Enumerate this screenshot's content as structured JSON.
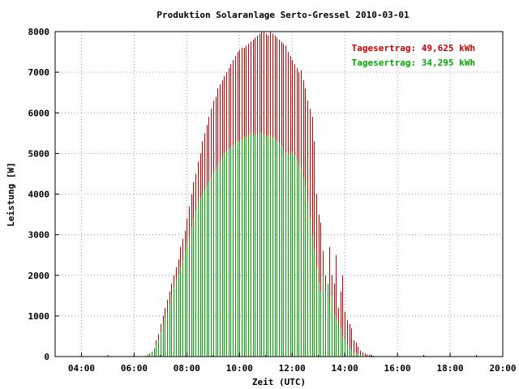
{
  "chart_data": {
    "type": "bar",
    "title": "Produktion Solaranlage Serto-Gressel 2010-03-01",
    "xlabel": "Zeit (UTC)",
    "ylabel": "Leistung [W]",
    "xlim_hours": [
      3.0,
      20.0
    ],
    "ylim": [
      0,
      8000
    ],
    "x_ticks": [
      "04:00",
      "06:00",
      "08:00",
      "10:00",
      "12:00",
      "14:00",
      "16:00",
      "18:00",
      "20:00"
    ],
    "y_ticks": [
      "0",
      "1000",
      "2000",
      "3000",
      "4000",
      "5000",
      "6000",
      "7000",
      "8000"
    ],
    "grid": true,
    "interval_minutes": 5,
    "legend_position": "top-right",
    "series": [
      {
        "name": "Tagesertrag: 49,625 kWh",
        "color": "#cc0000",
        "start_time": "06:25",
        "values": [
          20,
          50,
          80,
          120,
          200,
          400,
          550,
          800,
          1000,
          1200,
          1400,
          1600,
          1800,
          2000,
          2200,
          2400,
          2700,
          2900,
          3100,
          3400,
          3700,
          4000,
          4300,
          4500,
          4800,
          5000,
          5300,
          5500,
          5700,
          5900,
          6100,
          6300,
          6400,
          6600,
          6700,
          6800,
          6900,
          7000,
          7100,
          7200,
          7300,
          7400,
          7500,
          7550,
          7600,
          7600,
          7650,
          7700,
          7750,
          7800,
          7850,
          7900,
          7950,
          8000,
          8000,
          7950,
          7900,
          8000,
          7950,
          7900,
          7850,
          7800,
          7750,
          7700,
          7650,
          7500,
          7400,
          7300,
          7200,
          7100,
          7000,
          7050,
          6800,
          6600,
          6300,
          6100,
          5900,
          5300,
          4000,
          3500,
          3300,
          2600,
          2000,
          1400,
          2700,
          2000,
          1800,
          2500,
          1200,
          1600,
          2000,
          1100,
          900,
          800,
          700,
          400,
          350,
          250,
          150,
          100,
          80,
          60,
          50,
          30,
          20,
          10
        ]
      },
      {
        "name": "Tagesertrag: 34,295 kWh",
        "color": "#00aa00",
        "start_time": "06:25",
        "values": [
          10,
          30,
          60,
          100,
          150,
          300,
          400,
          600,
          800,
          950,
          1100,
          1300,
          1500,
          1700,
          1900,
          2000,
          2200,
          2400,
          2600,
          2800,
          3000,
          3200,
          3400,
          3600,
          3800,
          3900,
          4000,
          4100,
          4200,
          4300,
          4400,
          4500,
          4600,
          4700,
          4800,
          4900,
          5000,
          5050,
          5100,
          5150,
          5200,
          5250,
          5300,
          5300,
          5350,
          5400,
          5400,
          5450,
          5500,
          5500,
          5450,
          5450,
          5500,
          5500,
          5450,
          5400,
          5450,
          5400,
          5400,
          5350,
          5300,
          5250,
          5200,
          5100,
          5000,
          5000,
          4950,
          5050,
          4950,
          4850,
          4700,
          4600,
          4400,
          4200,
          3800,
          3400,
          3000,
          2600,
          2200,
          1800,
          1600,
          2000,
          1600,
          1800,
          1300,
          1500,
          1000,
          900,
          800,
          700,
          500,
          400,
          300,
          200,
          150,
          100,
          80,
          60,
          40,
          30,
          20,
          10,
          5,
          0,
          0,
          0
        ]
      }
    ]
  }
}
